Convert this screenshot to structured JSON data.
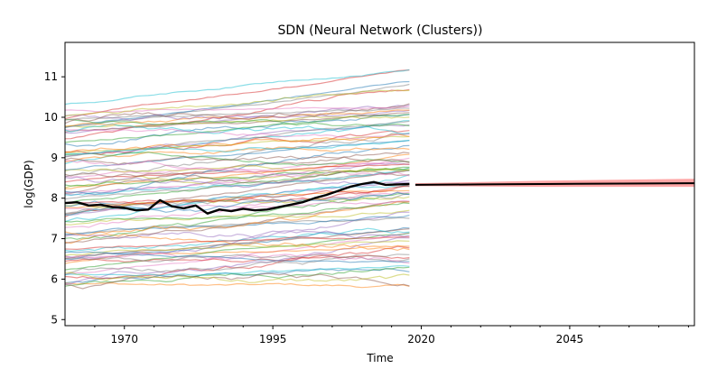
{
  "chart_data": {
    "type": "line",
    "title": "SDN (Neural Network (Clusters))",
    "xlabel": "Time",
    "ylabel": "log(GDP)",
    "xlim": [
      1960,
      2066
    ],
    "ylim": [
      4.85,
      11.85
    ],
    "x_ticks": [
      1970,
      1995,
      2020,
      2045
    ],
    "y_ticks": [
      5,
      6,
      7,
      8,
      9,
      10,
      11
    ],
    "grid": false,
    "history_years": [
      1960,
      2018
    ],
    "background_series_count": 90,
    "highlight_series": {
      "name": "",
      "color": "#000000",
      "x": [
        1960,
        1962,
        1964,
        1966,
        1968,
        1970,
        1972,
        1974,
        1976,
        1978,
        1980,
        1982,
        1984,
        1986,
        1988,
        1990,
        1992,
        1994,
        1996,
        1998,
        2000,
        2002,
        2004,
        2006,
        2008,
        2010,
        2012,
        2014,
        2016,
        2018
      ],
      "y": [
        7.88,
        7.9,
        7.82,
        7.84,
        7.78,
        7.76,
        7.7,
        7.72,
        7.95,
        7.8,
        7.75,
        7.82,
        7.62,
        7.72,
        7.68,
        7.74,
        7.7,
        7.72,
        7.78,
        7.84,
        7.9,
        8.0,
        8.08,
        8.18,
        8.28,
        8.35,
        8.4,
        8.33,
        8.34,
        8.35
      ]
    },
    "forecast": {
      "color": "#ff0000",
      "x": [
        2019,
        2030,
        2040,
        2050,
        2066
      ],
      "y": [
        8.33,
        8.34,
        8.35,
        8.36,
        8.37
      ],
      "band_lower": [
        8.3,
        8.29,
        8.28,
        8.28,
        8.28
      ],
      "band_upper": [
        8.37,
        8.4,
        8.43,
        8.45,
        8.48
      ]
    }
  }
}
